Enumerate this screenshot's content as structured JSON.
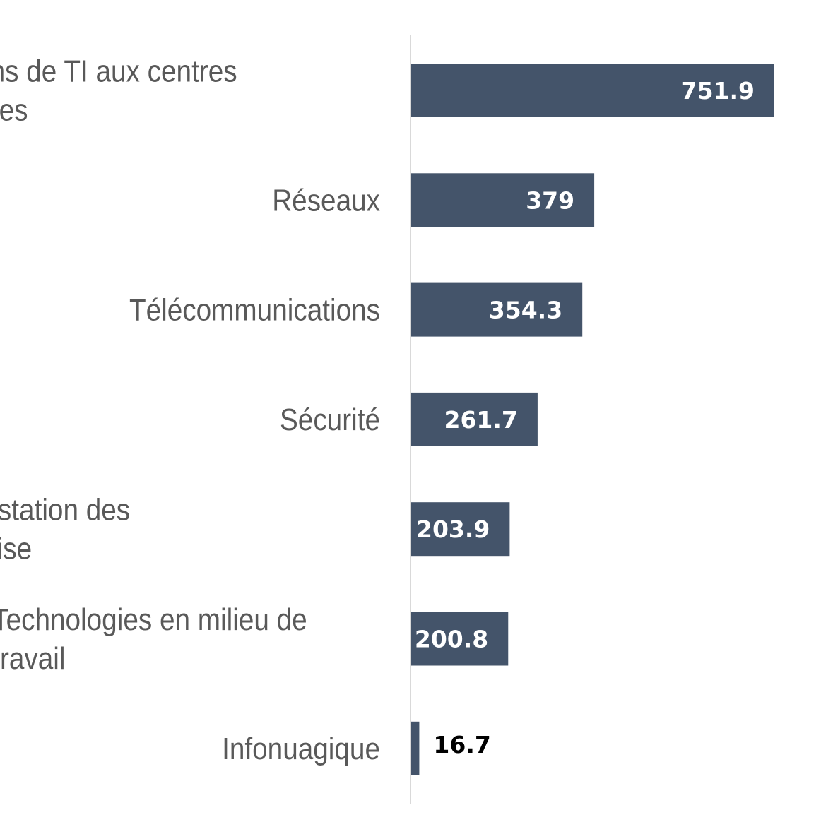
{
  "chart_data": {
    "type": "bar",
    "orientation": "horizontal",
    "categories": [
      [
        "Opérations de TI aux centres",
        "de données"
      ],
      [
        "Réseaux"
      ],
      [
        "Télécommunications"
      ],
      [
        "Sécurité"
      ],
      [
        "Conception et prestation des",
        "services d'entreprise"
      ],
      [
        "Technologies en milieu de",
        "travail"
      ],
      [
        "Infonuagique"
      ]
    ],
    "values": [
      751.9,
      379,
      354.3,
      261.7,
      203.9,
      200.8,
      16.7
    ],
    "value_labels": [
      "751.9",
      "379",
      "354.3",
      "261.7",
      "203.9",
      "200.8",
      "16.7"
    ],
    "xlim": [
      0,
      880
    ],
    "bar_color": "#44546a",
    "axis_color": "#d9d9d9",
    "grid": false,
    "title": "",
    "xlabel": "",
    "ylabel": ""
  }
}
